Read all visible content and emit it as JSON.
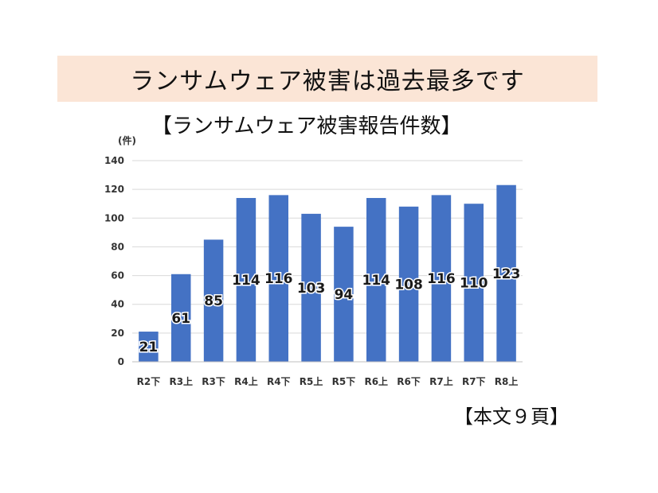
{
  "banner": {
    "text": "ランサムウェア被害は過去最多です"
  },
  "page_ref": "【本文９頁】",
  "chart_data": {
    "type": "bar",
    "title": "【ランサムウェア被害報告件数】",
    "ylabel": "(件)",
    "xlabel": "",
    "categories": [
      "R2下",
      "R3上",
      "R3下",
      "R4上",
      "R4下",
      "R5上",
      "R5下",
      "R6上",
      "R6下",
      "R7上",
      "R7下",
      "R8上"
    ],
    "values": [
      21,
      61,
      85,
      114,
      116,
      103,
      94,
      114,
      108,
      116,
      110,
      123
    ],
    "ylim": [
      0,
      140
    ],
    "yticks": [
      0,
      20,
      40,
      60,
      80,
      100,
      120,
      140
    ],
    "grid": true,
    "legend": "none",
    "bar_color": "#4472c4",
    "grid_color": "#d9d9d9"
  }
}
